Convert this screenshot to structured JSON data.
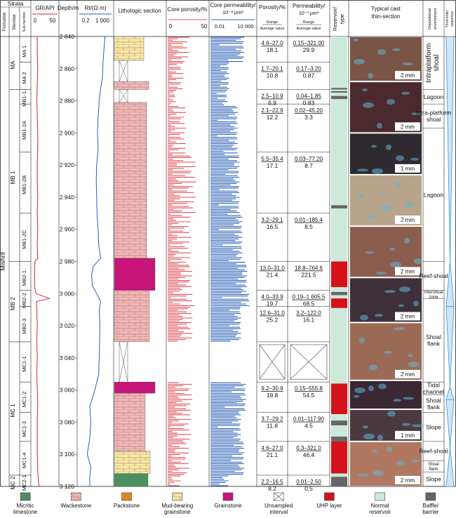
{
  "header": {
    "strata": "Strata",
    "formation": "Formation",
    "member": "Member",
    "submember": "Sub-member",
    "gr": "GR/API",
    "gr_min": "0",
    "gr_max": "50",
    "depth": "Depth/m",
    "rt": "Rt/(Ω·m)",
    "rt_min": "0.2",
    "rt_max": "1 000",
    "litho": "Lithologic section",
    "core_por": "Core porosity/%",
    "por_min": "0",
    "por_max": "50",
    "core_perm": "Core permeability/",
    "core_perm_unit": "10⁻³ μm²",
    "perm_min": "0.01",
    "perm_max": "10 000",
    "porosity": "Porosity/%",
    "permeability": "Permeability/",
    "perm_unit": "10⁻³ μm²",
    "range": "Range",
    "avg": "Average value",
    "reservoir": "Reservoir type",
    "cast": "Typical cast thin-section",
    "environment": "Depositional environment",
    "sequence": "Third-order sequence"
  },
  "formation": "Mishrif",
  "members": [
    {
      "name": "MA",
      "top": 2840,
      "bottom": 2873
    },
    {
      "name": "MB 1",
      "top": 2873,
      "bottom": 2980
    },
    {
      "name": "MB 2",
      "top": 2980,
      "bottom": 3030
    },
    {
      "name": "MC 1",
      "top": 3030,
      "bottom": 3113
    },
    {
      "name": "MC 2",
      "top": 3113,
      "bottom": 3120
    }
  ],
  "submembers": [
    {
      "name": "MA 1",
      "top": 2840,
      "bottom": 2856
    },
    {
      "name": "MA 2",
      "top": 2856,
      "bottom": 2873
    },
    {
      "name": "MB1-1",
      "top": 2873,
      "bottom": 2882
    },
    {
      "name": "MB1-2A",
      "top": 2882,
      "bottom": 2912
    },
    {
      "name": "MB1-2B",
      "top": 2912,
      "bottom": 2950
    },
    {
      "name": "MB1-2C",
      "top": 2950,
      "bottom": 2980
    },
    {
      "name": "MB2-1",
      "top": 2980,
      "bottom": 2998
    },
    {
      "name": "MB2-2",
      "top": 2998,
      "bottom": 3008
    },
    {
      "name": "MB2-3",
      "top": 3008,
      "bottom": 3030
    },
    {
      "name": "MC1-1",
      "top": 3030,
      "bottom": 3055
    },
    {
      "name": "MC1-2",
      "top": 3055,
      "bottom": 3074
    },
    {
      "name": "MC1-3",
      "top": 3074,
      "bottom": 3092
    },
    {
      "name": "MC1-4",
      "top": 3092,
      "bottom": 3113
    },
    {
      "name": "MC2-1",
      "top": 3113,
      "bottom": 3120
    }
  ],
  "depth_ticks": [
    "2 840",
    "2 860",
    "2 880",
    "2 900",
    "2 920",
    "2 940",
    "2 960",
    "2 980",
    "3 000",
    "3 020",
    "3 040",
    "3 060",
    "3 080",
    "3 100",
    "3 120"
  ],
  "stats": [
    {
      "por_range": "4.6–27.0",
      "por_avg": "18.1",
      "perm_range": "0.15–321.00",
      "perm_avg": "29.9"
    },
    {
      "por_range": "1.7–20.1",
      "por_avg": "10.8",
      "perm_range": "0.17–3.20",
      "perm_avg": "0.87"
    },
    {
      "por_range": "2.5–10.9",
      "por_avg": "6.9",
      "perm_range": "0.04–1.85",
      "perm_avg": "0.83"
    },
    {
      "por_range": "2.1–22.9",
      "por_avg": "12.2",
      "perm_range": "0.02–45.20",
      "perm_avg": "3.3"
    },
    {
      "por_range": "5.5–35.4",
      "por_avg": "17.1",
      "perm_range": "0.03–77.20",
      "perm_avg": "8.7"
    },
    {
      "por_range": "3.2–29.1",
      "por_avg": "16.5",
      "perm_range": "0.01–185.4",
      "perm_avg": "8.5"
    },
    {
      "por_range": "13.0–31.0",
      "por_avg": "21.4",
      "perm_range": "18.8–764.6",
      "perm_avg": "221.5"
    },
    {
      "por_range": "4.0–33.9",
      "por_avg": "19.7",
      "perm_range": "0.19–1 605.5",
      "perm_avg": "68.5"
    },
    {
      "por_range": "12.6–31.0",
      "por_avg": "25.2",
      "perm_range": "3.2–122.0",
      "perm_avg": "16.1"
    },
    {
      "por_range": "",
      "por_avg": "",
      "perm_range": "",
      "perm_avg": ""
    },
    {
      "por_range": "9.2–30.9",
      "por_avg": "19.8",
      "perm_range": "0.15–555.8",
      "perm_avg": "54.5"
    },
    {
      "por_range": "3.7–29.2",
      "por_avg": "11.8",
      "perm_range": "0.01–117.90",
      "perm_avg": "4.5"
    },
    {
      "por_range": "4.6–27.0",
      "por_avg": "21.1",
      "perm_range": "0.3–321.0",
      "perm_avg": "46.4"
    },
    {
      "por_range": "2.2–16.5",
      "por_avg": "8.2",
      "perm_range": "0.01–2.50",
      "perm_avg": "0.5"
    }
  ],
  "reservoir_intervals": [
    {
      "top": 2840,
      "bottom": 2872,
      "type": "normal"
    },
    {
      "top": 2872,
      "bottom": 2873,
      "type": "baffle"
    },
    {
      "top": 2873,
      "bottom": 2874,
      "type": "normal"
    },
    {
      "top": 2874,
      "bottom": 2875,
      "type": "baffle"
    },
    {
      "top": 2875,
      "bottom": 2877,
      "type": "normal"
    },
    {
      "top": 2877,
      "bottom": 2879,
      "type": "baffle"
    },
    {
      "top": 2879,
      "bottom": 2945,
      "type": "normal"
    },
    {
      "top": 2945,
      "bottom": 2947,
      "type": "baffle"
    },
    {
      "top": 2947,
      "bottom": 2980,
      "type": "normal"
    },
    {
      "top": 2980,
      "bottom": 2996,
      "type": "uhp"
    },
    {
      "top": 2996,
      "bottom": 2999,
      "type": "normal"
    },
    {
      "top": 2999,
      "bottom": 3001,
      "type": "baffle"
    },
    {
      "top": 3001,
      "bottom": 3003,
      "type": "normal"
    },
    {
      "top": 3003,
      "bottom": 3009,
      "type": "uhp"
    },
    {
      "top": 3009,
      "bottom": 3056,
      "type": "normal"
    },
    {
      "top": 3056,
      "bottom": 3075,
      "type": "uhp"
    },
    {
      "top": 3075,
      "bottom": 3079,
      "type": "normal"
    },
    {
      "top": 3079,
      "bottom": 3082,
      "type": "baffle"
    },
    {
      "top": 3082,
      "bottom": 3089,
      "type": "normal"
    },
    {
      "top": 3089,
      "bottom": 3092,
      "type": "baffle"
    },
    {
      "top": 3092,
      "bottom": 3112,
      "type": "uhp"
    },
    {
      "top": 3112,
      "bottom": 3114,
      "type": "normal"
    },
    {
      "top": 3114,
      "bottom": 3120,
      "type": "baffle"
    }
  ],
  "environments": [
    {
      "label": "Intraplatform shoal",
      "top": 2840,
      "bottom": 2873,
      "size": "big"
    },
    {
      "label": "Lagoon",
      "top": 2873,
      "bottom": 2882,
      "size": "mid"
    },
    {
      "label": "Intra-platform shoal",
      "top": 2882,
      "bottom": 2897,
      "size": "mid"
    },
    {
      "label": "Lagoon",
      "top": 2897,
      "bottom": 2980,
      "size": "mid"
    },
    {
      "label": "Reef-shoal",
      "top": 2980,
      "bottom": 2998,
      "size": "mid"
    },
    {
      "label": "Intershoal zone",
      "top": 2998,
      "bottom": 3003,
      "size": "small"
    },
    {
      "label": "Shoal flank",
      "top": 3003,
      "bottom": 3055,
      "size": "mid"
    },
    {
      "label": "Tidal channel",
      "top": 3055,
      "bottom": 3063,
      "size": "mid"
    },
    {
      "label": "Shoal flank",
      "top": 3063,
      "bottom": 3074,
      "size": "mid"
    },
    {
      "label": "Slope",
      "top": 3074,
      "bottom": 3092,
      "size": "mid"
    },
    {
      "label": "Reef-shoal",
      "top": 3092,
      "bottom": 3104,
      "size": "mid"
    },
    {
      "label": "Shoal flank",
      "top": 3104,
      "bottom": 3111,
      "size": "small"
    },
    {
      "label": "Slope",
      "top": 3111,
      "bottom": 3120,
      "size": "mid"
    }
  ],
  "sequences": [
    {
      "shape": "down",
      "top": 2840,
      "bottom": 2980
    },
    {
      "shape": "up",
      "top": 2980,
      "bottom": 3008
    },
    {
      "shape": "down",
      "top": 3008,
      "bottom": 3058
    },
    {
      "shape": "up",
      "top": 3058,
      "bottom": 3066
    },
    {
      "shape": "down",
      "top": 3066,
      "bottom": 3096
    },
    {
      "shape": "up",
      "top": 3096,
      "bottom": 3120
    }
  ],
  "thin_sections": [
    {
      "top": 2840,
      "bottom": 2868,
      "scale": "2 mm",
      "tone": "#7a5444"
    },
    {
      "top": 2868,
      "bottom": 2900,
      "scale": "2 mm",
      "tone": "#4a2a2e"
    },
    {
      "top": 2900,
      "bottom": 2926,
      "scale": "1 mm",
      "tone": "#2f2a30"
    },
    {
      "top": 2926,
      "bottom": 2958,
      "scale": "2 mm",
      "tone": "#b7a48a"
    },
    {
      "top": 2958,
      "bottom": 2990,
      "scale": "2 mm",
      "tone": "#8a5d4e"
    },
    {
      "top": 2990,
      "bottom": 3018,
      "scale": "2 mm",
      "tone": "#3e3038"
    },
    {
      "top": 3018,
      "bottom": 3054,
      "scale": "2 mm",
      "tone": "#9a6a55"
    },
    {
      "top": 3054,
      "bottom": 3072,
      "scale": "",
      "tone": "#3a2832"
    },
    {
      "top": 3072,
      "bottom": 3092,
      "scale": "1 mm",
      "tone": "#4a3a40"
    },
    {
      "top": 3092,
      "bottom": 3120,
      "scale": "2 mm",
      "tone": "#b07860"
    }
  ],
  "unsampled": [
    {
      "top": 2855,
      "bottom": 2868
    },
    {
      "top": 2873,
      "bottom": 2881
    },
    {
      "top": 3030,
      "bottom": 3055
    }
  ],
  "litho_tone": {
    "top": 2840,
    "bottom": 3120
  },
  "legend": [
    {
      "label": "Micritic limestone",
      "color": "#4c8f62",
      "pattern": "solid"
    },
    {
      "label": "Wackestone",
      "color": "#f2b7b7",
      "pattern": "brick"
    },
    {
      "label": "Packstone",
      "color": "#e0861e",
      "pattern": "solid"
    },
    {
      "label": "Mud-bearing grainstone",
      "color": "#f8eba6",
      "pattern": "brick"
    },
    {
      "label": "Grainstone",
      "color": "#c7157a",
      "pattern": "solid"
    },
    {
      "label": "Unsampled interval",
      "color": "#ffffff",
      "pattern": "cross"
    },
    {
      "label": "UHP layer",
      "color": "#d4121a",
      "pattern": "solid"
    },
    {
      "label": "Normal reservoir",
      "color": "#cde9da",
      "pattern": "solid"
    },
    {
      "label": "Baffle/ barrier",
      "color": "#666666",
      "pattern": "solid"
    }
  ],
  "colors": {
    "gr": "#d9252a",
    "rt": "#2161b5",
    "por": "#e0505a",
    "perm": "#2e63b8",
    "uhp": "#d4121a",
    "normal": "#cde9da",
    "baffle": "#666666",
    "seq": "#3a93d6"
  },
  "chart_data": {
    "type": "well-log",
    "depth_range": [
      2840,
      3120
    ],
    "depth_unit": "m",
    "gr_range": [
      0,
      50
    ],
    "rt_range": [
      0.2,
      1000
    ],
    "rt_scale": "log",
    "porosity_range": [
      0,
      50
    ],
    "permeability_range": [
      0.01,
      10000
    ],
    "permeability_scale": "log",
    "gr_curve": {
      "depth": [
        2840,
        2850,
        2860,
        2870,
        2880,
        2890,
        2900,
        2910,
        2920,
        2930,
        2940,
        2950,
        2960,
        2970,
        2978,
        2980,
        2985,
        2995,
        3000,
        3003,
        3005,
        3010,
        3020,
        3030,
        3040,
        3050,
        3060,
        3070,
        3080,
        3090,
        3100,
        3110,
        3115,
        3120
      ],
      "value": [
        8,
        8,
        9,
        8,
        7,
        8,
        9,
        9,
        8,
        8,
        9,
        8,
        9,
        8,
        9,
        3,
        2,
        2,
        5,
        35,
        6,
        7,
        8,
        7,
        8,
        7,
        8,
        9,
        8,
        8,
        8,
        9,
        10,
        12
      ]
    },
    "rt_curve": {
      "depth": [
        2840,
        2848,
        2855,
        2865,
        2872,
        2880,
        2890,
        2900,
        2910,
        2920,
        2930,
        2940,
        2950,
        2960,
        2970,
        2978,
        2983,
        2988,
        2995,
        3000,
        3005,
        3010,
        3020,
        3030,
        3040,
        3050,
        3060,
        3070,
        3080,
        3090,
        3100,
        3108,
        3114,
        3120
      ],
      "value": [
        200,
        150,
        120,
        100,
        60,
        40,
        30,
        25,
        30,
        20,
        18,
        20,
        22,
        30,
        35,
        60,
        8,
        5,
        6,
        20,
        60,
        40,
        50,
        45,
        40,
        35,
        12,
        3,
        4,
        3,
        1.5,
        4,
        3,
        3
      ]
    },
    "porosity_intervals": [
      {
        "top": 2840,
        "bottom": 2856,
        "avg": 18.1,
        "min": 4.6,
        "max": 27.0
      },
      {
        "top": 2856,
        "bottom": 2873,
        "avg": 10.8,
        "min": 1.7,
        "max": 20.1
      },
      {
        "top": 2873,
        "bottom": 2882,
        "avg": 6.9,
        "min": 2.5,
        "max": 10.9
      },
      {
        "top": 2882,
        "bottom": 2912,
        "avg": 12.2,
        "min": 2.1,
        "max": 22.9
      },
      {
        "top": 2912,
        "bottom": 2950,
        "avg": 17.1,
        "min": 5.5,
        "max": 35.4
      },
      {
        "top": 2950,
        "bottom": 2980,
        "avg": 16.5,
        "min": 3.2,
        "max": 29.1
      },
      {
        "top": 2980,
        "bottom": 2998,
        "avg": 21.4,
        "min": 13.0,
        "max": 31.0
      },
      {
        "top": 2998,
        "bottom": 3008,
        "avg": 19.7,
        "min": 4.0,
        "max": 33.9
      },
      {
        "top": 3008,
        "bottom": 3030,
        "avg": 25.2,
        "min": 12.6,
        "max": 31.0
      },
      {
        "top": 3055,
        "bottom": 3074,
        "avg": 19.8,
        "min": 9.2,
        "max": 30.9
      },
      {
        "top": 3074,
        "bottom": 3092,
        "avg": 11.8,
        "min": 3.7,
        "max": 29.2
      },
      {
        "top": 3092,
        "bottom": 3113,
        "avg": 21.1,
        "min": 4.6,
        "max": 27.0
      },
      {
        "top": 3113,
        "bottom": 3120,
        "avg": 8.2,
        "min": 2.2,
        "max": 16.5
      }
    ],
    "permeability_intervals": [
      {
        "top": 2840,
        "bottom": 2856,
        "avg": 29.9,
        "min": 0.15,
        "max": 321.0
      },
      {
        "top": 2856,
        "bottom": 2873,
        "avg": 0.87,
        "min": 0.17,
        "max": 3.2
      },
      {
        "top": 2873,
        "bottom": 2882,
        "avg": 0.83,
        "min": 0.04,
        "max": 1.85
      },
      {
        "top": 2882,
        "bottom": 2912,
        "avg": 3.3,
        "min": 0.02,
        "max": 45.2
      },
      {
        "top": 2912,
        "bottom": 2950,
        "avg": 8.7,
        "min": 0.03,
        "max": 77.2
      },
      {
        "top": 2950,
        "bottom": 2980,
        "avg": 8.5,
        "min": 0.01,
        "max": 185.4
      },
      {
        "top": 2980,
        "bottom": 2998,
        "avg": 221.5,
        "min": 18.8,
        "max": 764.6
      },
      {
        "top": 2998,
        "bottom": 3008,
        "avg": 68.5,
        "min": 0.19,
        "max": 1605.5
      },
      {
        "top": 3008,
        "bottom": 3030,
        "avg": 16.1,
        "min": 3.2,
        "max": 122.0
      },
      {
        "top": 3055,
        "bottom": 3074,
        "avg": 54.5,
        "min": 0.15,
        "max": 555.8
      },
      {
        "top": 3074,
        "bottom": 3092,
        "avg": 4.5,
        "min": 0.01,
        "max": 117.9
      },
      {
        "top": 3092,
        "bottom": 3113,
        "avg": 46.4,
        "min": 0.3,
        "max": 321.0
      },
      {
        "top": 3113,
        "bottom": 3120,
        "avg": 0.5,
        "min": 0.01,
        "max": 2.5
      }
    ],
    "lithology_intervals": [
      {
        "top": 2840,
        "bottom": 2855,
        "lith": "mud-grainstone"
      },
      {
        "top": 2868,
        "bottom": 2873,
        "lith": "wackestone"
      },
      {
        "top": 2881,
        "bottom": 2978,
        "lith": "wackestone"
      },
      {
        "top": 2978,
        "bottom": 2998,
        "lith": "grainstone"
      },
      {
        "top": 2998,
        "bottom": 3030,
        "lith": "wackestone"
      },
      {
        "top": 3055,
        "bottom": 3062,
        "lith": "grainstone"
      },
      {
        "top": 3062,
        "bottom": 3098,
        "lith": "wackestone"
      },
      {
        "top": 3098,
        "bottom": 3112,
        "lith": "mud-grainstone"
      },
      {
        "top": 3112,
        "bottom": 3120,
        "lith": "micritic"
      }
    ]
  }
}
